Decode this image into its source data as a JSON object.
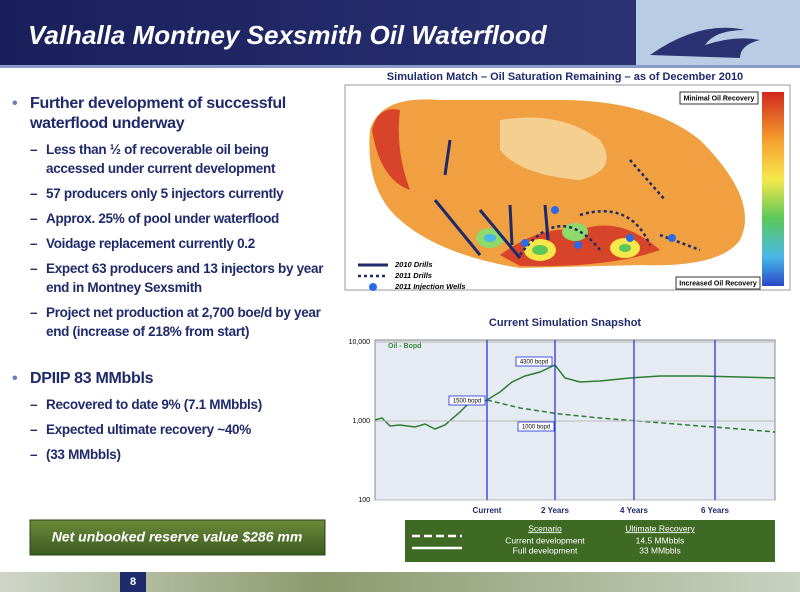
{
  "header": {
    "title": "Valhalla Montney Sexsmith Oil Waterflood"
  },
  "bullets": [
    {
      "text": "Further development of successful waterflood underway",
      "sub": [
        "Less than ½ of recoverable oil being accessed under current development",
        "57 producers only 5 injectors currently",
        "Approx. 25% of pool under waterflood",
        "Voidage replacement currently 0.2",
        "Expect 63 producers and 13 injectors by year end in Montney Sexsmith",
        "Project net production at 2,700 boe/d by year end (increase of 218% from start)"
      ]
    },
    {
      "text": "DPIIP 83 MMbbls",
      "sub": [
        "Recovered to date 9% (7.1 MMbbls)",
        "Expected ultimate recovery ~40%",
        "(33 MMbbls)"
      ]
    }
  ],
  "callout": "Net unbooked reserve value $286 mm",
  "map": {
    "title": "Simulation Match – Oil Saturation Remaining – as of December 2010",
    "labels": [
      "Minimal Oil Recovery",
      "Increased Oil Recovery"
    ],
    "legend": [
      "2010 Drills",
      "2011 Drills",
      "2011 Injection Wells"
    ]
  },
  "chart": {
    "title": "Current Simulation Snapshot",
    "series_label": "Oil - Bopd",
    "annotations": [
      "4300 bopd",
      "1500 bopd",
      "1000 bopd"
    ],
    "x_labels": [
      "Current",
      "2 Years",
      "4 Years",
      "6 Years"
    ],
    "log_scale": true,
    "ylim": [
      100,
      10000
    ],
    "yticks": [
      {
        "value": 10000,
        "label": "10,000"
      },
      {
        "value": 1000,
        "label": "1,000"
      },
      100
    ],
    "table": {
      "header": [
        "Scenario",
        "Ultimate Recovery"
      ],
      "rows": [
        [
          "Current development",
          "14.5 MMbbls"
        ],
        [
          "Full development",
          "33 MMbbls"
        ]
      ]
    }
  },
  "footer": {
    "page": "8"
  }
}
